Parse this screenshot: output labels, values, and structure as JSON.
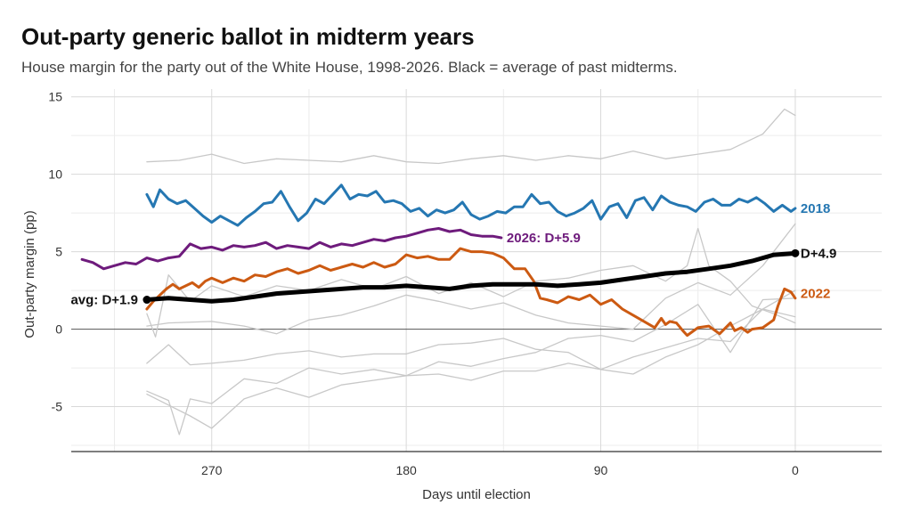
{
  "header": {
    "title": "Out-party generic ballot in midterm years",
    "subtitle": "House margin for the party out of the White House, 1998-2026. Black = average of past midterms."
  },
  "chart_data": {
    "type": "line",
    "title": "Out-party generic ballot in midterm years",
    "subtitle": "House margin for the party out of the White House, 1998-2026. Black = average of past midterms.",
    "xlabel": "Days until election",
    "ylabel": "Out-party margin (pp)",
    "x_reversed": true,
    "xlim": [
      335,
      -40
    ],
    "ylim": [
      -7.9,
      15.5
    ],
    "xticks": [
      270,
      180,
      90,
      0
    ],
    "yticks": [
      15,
      10,
      5,
      0,
      -5
    ],
    "grid": true,
    "colors": {
      "avg": "#000000",
      "s2018": "#2577b2",
      "s2026": "#6e1b7c",
      "s2022": "#cc5a12",
      "past": "#c8c8c8",
      "zero_line": "#555555",
      "grid": "#d9d9d9"
    },
    "series": [
      {
        "name": "",
        "role": "past",
        "x": [
          300,
          285,
          270,
          255,
          240,
          225,
          210,
          195,
          180,
          165,
          150,
          135,
          120,
          105,
          90,
          75,
          60,
          45,
          30,
          15,
          5,
          0
        ],
        "y": [
          10.8,
          10.9,
          11.3,
          10.7,
          11.0,
          10.9,
          10.8,
          11.2,
          10.8,
          10.7,
          11.0,
          11.2,
          10.9,
          11.2,
          11.0,
          11.5,
          11.0,
          11.3,
          11.6,
          12.6,
          14.2,
          13.8
        ]
      },
      {
        "name": "",
        "role": "past",
        "x": [
          300,
          296,
          290,
          280,
          270,
          255,
          240,
          225,
          210,
          195,
          180,
          165,
          150,
          135,
          120,
          105,
          90,
          75,
          60,
          50,
          45,
          40,
          30,
          20,
          10,
          0
        ],
        "y": [
          1.0,
          -0.5,
          3.5,
          1.8,
          2.8,
          2.1,
          2.8,
          2.5,
          3.2,
          2.6,
          3.4,
          2.3,
          3.0,
          2.1,
          3.1,
          3.3,
          3.8,
          4.1,
          3.1,
          4.1,
          6.5,
          4.1,
          3.1,
          1.5,
          1.0,
          0.4
        ]
      },
      {
        "name": "",
        "role": "past",
        "x": [
          300,
          290,
          270,
          255,
          240,
          225,
          210,
          195,
          180,
          165,
          150,
          135,
          120,
          105,
          90,
          75,
          60,
          45,
          30,
          15,
          0
        ],
        "y": [
          0.2,
          0.4,
          0.5,
          0.2,
          -0.3,
          0.6,
          0.9,
          1.5,
          2.2,
          1.8,
          1.3,
          1.7,
          0.9,
          0.4,
          0.2,
          0.0,
          2.0,
          3.0,
          2.2,
          4.1,
          6.8
        ]
      },
      {
        "name": "",
        "role": "past",
        "x": [
          300,
          290,
          280,
          270,
          255,
          240,
          225,
          210,
          195,
          180,
          165,
          150,
          135,
          120,
          105,
          90,
          75,
          60,
          45,
          30,
          15,
          0
        ],
        "y": [
          -2.2,
          -1.0,
          -2.3,
          -2.2,
          -2.0,
          -1.6,
          -1.4,
          -1.8,
          -1.6,
          -1.6,
          -1.0,
          -0.9,
          -0.6,
          -1.3,
          -1.5,
          -2.6,
          -2.9,
          -1.8,
          -1.0,
          0.2,
          1.3,
          2.5
        ]
      },
      {
        "name": "",
        "role": "past",
        "x": [
          300,
          290,
          285,
          280,
          270,
          255,
          240,
          225,
          210,
          195,
          180,
          165,
          150,
          135,
          120,
          105,
          90,
          75,
          60,
          45,
          30,
          15,
          0
        ],
        "y": [
          -4.0,
          -4.6,
          -6.8,
          -4.5,
          -4.8,
          -3.2,
          -3.5,
          -2.5,
          -2.9,
          -2.6,
          -3.0,
          -2.1,
          -2.4,
          -1.9,
          -1.5,
          -0.6,
          -0.4,
          -0.8,
          0.3,
          1.6,
          -1.5,
          1.9,
          2.0
        ]
      },
      {
        "name": "",
        "role": "past",
        "x": [
          300,
          290,
          280,
          270,
          255,
          240,
          225,
          210,
          195,
          180,
          165,
          150,
          135,
          120,
          105,
          90,
          75,
          60,
          45,
          30,
          15,
          0
        ],
        "y": [
          -4.2,
          -4.9,
          -5.6,
          -6.4,
          -4.5,
          -3.8,
          -4.4,
          -3.6,
          -3.3,
          -3.0,
          -2.9,
          -3.3,
          -2.7,
          -2.7,
          -2.2,
          -2.6,
          -1.8,
          -1.2,
          -0.6,
          -0.8,
          1.3,
          0.8
        ]
      },
      {
        "name": "2018",
        "role": "highlight",
        "color": "#2577b2",
        "x": [
          300,
          297,
          294,
          290,
          286,
          282,
          278,
          274,
          270,
          266,
          262,
          258,
          254,
          250,
          246,
          242,
          238,
          234,
          230,
          226,
          222,
          218,
          214,
          210,
          206,
          202,
          198,
          194,
          190,
          186,
          182,
          178,
          174,
          170,
          166,
          162,
          158,
          154,
          150,
          146,
          142,
          138,
          134,
          130,
          126,
          122,
          118,
          114,
          110,
          106,
          102,
          98,
          94,
          90,
          86,
          82,
          78,
          74,
          70,
          66,
          62,
          58,
          54,
          50,
          46,
          42,
          38,
          34,
          30,
          26,
          22,
          18,
          14,
          10,
          6,
          2,
          0
        ],
        "y": [
          8.7,
          7.9,
          9.0,
          8.4,
          8.1,
          8.3,
          7.8,
          7.3,
          6.9,
          7.3,
          7.0,
          6.7,
          7.2,
          7.6,
          8.1,
          8.2,
          8.9,
          7.9,
          7.0,
          7.5,
          8.4,
          8.1,
          8.7,
          9.3,
          8.4,
          8.7,
          8.6,
          8.9,
          8.2,
          8.3,
          8.1,
          7.6,
          7.8,
          7.3,
          7.7,
          7.5,
          7.7,
          8.2,
          7.4,
          7.1,
          7.3,
          7.6,
          7.5,
          7.9,
          7.9,
          8.7,
          8.1,
          8.2,
          7.6,
          7.3,
          7.5,
          7.8,
          8.3,
          7.1,
          7.9,
          8.1,
          7.2,
          8.3,
          8.5,
          7.7,
          8.6,
          8.2,
          8.0,
          7.9,
          7.6,
          8.2,
          8.4,
          8.0,
          8.0,
          8.4,
          8.2,
          8.5,
          8.1,
          7.6,
          8.0,
          7.6,
          7.8
        ]
      },
      {
        "name": "2026",
        "role": "highlight",
        "color": "#6e1b7c",
        "x": [
          330,
          325,
          320,
          315,
          310,
          305,
          300,
          295,
          290,
          285,
          280,
          275,
          270,
          265,
          260,
          255,
          250,
          245,
          240,
          235,
          230,
          225,
          220,
          215,
          210,
          205,
          200,
          195,
          190,
          185,
          180,
          175,
          170,
          165,
          160,
          155,
          150,
          145,
          140,
          136
        ],
        "y": [
          4.5,
          4.3,
          3.9,
          4.1,
          4.3,
          4.2,
          4.6,
          4.4,
          4.6,
          4.7,
          5.5,
          5.2,
          5.3,
          5.1,
          5.4,
          5.3,
          5.4,
          5.6,
          5.2,
          5.4,
          5.3,
          5.2,
          5.6,
          5.3,
          5.5,
          5.4,
          5.6,
          5.8,
          5.7,
          5.9,
          6.0,
          6.2,
          6.4,
          6.5,
          6.3,
          6.4,
          6.1,
          6.0,
          6.0,
          5.9
        ]
      },
      {
        "name": "2022",
        "role": "highlight",
        "color": "#cc5a12",
        "x": [
          300,
          297,
          294,
          291,
          288,
          285,
          282,
          279,
          276,
          273,
          270,
          265,
          260,
          255,
          250,
          245,
          240,
          235,
          230,
          225,
          220,
          215,
          210,
          205,
          200,
          195,
          190,
          185,
          180,
          175,
          170,
          165,
          160,
          155,
          150,
          145,
          140,
          135,
          130,
          125,
          121,
          118,
          115,
          110,
          105,
          100,
          95,
          90,
          85,
          80,
          75,
          70,
          65,
          62,
          60,
          58,
          55,
          52,
          50,
          45,
          40,
          35,
          30,
          28,
          25,
          22,
          20,
          15,
          10,
          8,
          5,
          2,
          0
        ],
        "y": [
          1.3,
          1.8,
          2.2,
          2.6,
          2.9,
          2.6,
          2.8,
          3.0,
          2.7,
          3.1,
          3.3,
          3.0,
          3.3,
          3.1,
          3.5,
          3.4,
          3.7,
          3.9,
          3.6,
          3.8,
          4.1,
          3.8,
          4.0,
          4.2,
          4.0,
          4.3,
          4.0,
          4.2,
          4.8,
          4.6,
          4.7,
          4.5,
          4.5,
          5.2,
          5.0,
          5.0,
          4.9,
          4.6,
          3.9,
          3.9,
          3.1,
          2.0,
          1.9,
          1.7,
          2.1,
          1.9,
          2.2,
          1.6,
          1.9,
          1.3,
          0.9,
          0.5,
          0.1,
          0.7,
          0.3,
          0.5,
          0.4,
          -0.1,
          -0.4,
          0.1,
          0.2,
          -0.3,
          0.4,
          -0.1,
          0.1,
          -0.2,
          0.0,
          0.1,
          0.6,
          1.5,
          2.6,
          2.4,
          2.0
        ]
      },
      {
        "name": "",
        "role": "average",
        "color": "#000000",
        "x": [
          300,
          290,
          280,
          270,
          260,
          250,
          240,
          230,
          220,
          210,
          200,
          190,
          180,
          170,
          160,
          150,
          140,
          130,
          120,
          110,
          100,
          90,
          80,
          70,
          60,
          50,
          40,
          30,
          20,
          10,
          0
        ],
        "y": [
          1.9,
          2.0,
          1.9,
          1.8,
          1.9,
          2.1,
          2.3,
          2.4,
          2.5,
          2.6,
          2.7,
          2.7,
          2.8,
          2.7,
          2.6,
          2.8,
          2.9,
          2.9,
          2.9,
          2.8,
          2.9,
          3.0,
          3.2,
          3.4,
          3.6,
          3.7,
          3.9,
          4.1,
          4.4,
          4.8,
          4.9
        ]
      }
    ],
    "annotations": [
      {
        "text": "2018",
        "x": 0,
        "y": 7.8,
        "color": "#2577b2",
        "anchor": "right-of-end"
      },
      {
        "text": "2026: D+5.9",
        "x": 136,
        "y": 5.9,
        "color": "#6e1b7c",
        "anchor": "right-of-end"
      },
      {
        "text": "D+4.9",
        "x": 0,
        "y": 4.9,
        "color": "#111111",
        "anchor": "right-of-end"
      },
      {
        "text": "2022",
        "x": 0,
        "y": 2.3,
        "color": "#cc5a12",
        "anchor": "right-of-end"
      },
      {
        "text": "avg: D+1.9",
        "x": 300,
        "y": 1.9,
        "color": "#111111",
        "anchor": "left-of-start"
      }
    ],
    "endpoints": [
      {
        "x": 300,
        "y": 1.9
      },
      {
        "x": 0,
        "y": 4.9
      }
    ]
  }
}
